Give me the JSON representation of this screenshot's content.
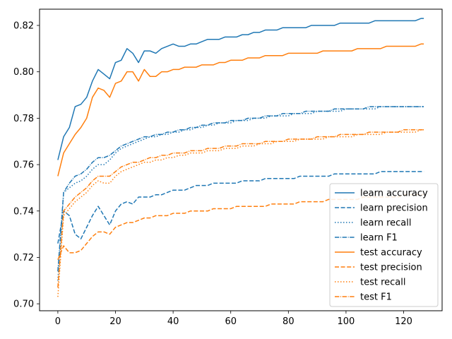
{
  "chart_data": {
    "type": "line",
    "title": "",
    "xlabel": "",
    "ylabel": "",
    "xlim": [
      -6.35,
      133.35
    ],
    "ylim": [
      0.697,
      0.827
    ],
    "xticks": [
      0,
      20,
      40,
      60,
      80,
      100,
      120
    ],
    "yticks": [
      0.7,
      0.72,
      0.74,
      0.76,
      0.78,
      0.8,
      0.82
    ],
    "ytick_labels": [
      "0.70",
      "0.72",
      "0.74",
      "0.76",
      "0.78",
      "0.80",
      "0.82"
    ],
    "grid": false,
    "legend_position": "lower right",
    "colors": {
      "learn": "#1f77b4",
      "test": "#ff7f0e"
    },
    "x": [
      0,
      2,
      4,
      6,
      8,
      10,
      12,
      14,
      16,
      18,
      20,
      22,
      24,
      26,
      28,
      30,
      32,
      34,
      36,
      38,
      40,
      42,
      44,
      46,
      48,
      50,
      52,
      54,
      56,
      58,
      60,
      62,
      64,
      66,
      68,
      70,
      72,
      74,
      76,
      78,
      80,
      82,
      84,
      86,
      88,
      90,
      92,
      94,
      96,
      98,
      100,
      102,
      104,
      106,
      108,
      110,
      112,
      114,
      116,
      118,
      120,
      122,
      124,
      126,
      127
    ],
    "series": [
      {
        "name": "learn accuracy",
        "color": "#1f77b4",
        "linestyle": "solid",
        "values": [
          0.762,
          0.772,
          0.776,
          0.785,
          0.786,
          0.789,
          0.796,
          0.801,
          0.799,
          0.797,
          0.804,
          0.805,
          0.81,
          0.808,
          0.804,
          0.809,
          0.809,
          0.808,
          0.81,
          0.811,
          0.812,
          0.811,
          0.811,
          0.812,
          0.812,
          0.813,
          0.814,
          0.814,
          0.814,
          0.815,
          0.815,
          0.815,
          0.816,
          0.816,
          0.817,
          0.817,
          0.818,
          0.818,
          0.818,
          0.819,
          0.819,
          0.819,
          0.819,
          0.819,
          0.82,
          0.82,
          0.82,
          0.82,
          0.82,
          0.821,
          0.821,
          0.821,
          0.821,
          0.821,
          0.821,
          0.822,
          0.822,
          0.822,
          0.822,
          0.822,
          0.822,
          0.822,
          0.822,
          0.823,
          0.823
        ]
      },
      {
        "name": "learn precision",
        "color": "#1f77b4",
        "linestyle": "dashed",
        "values": [
          0.726,
          0.74,
          0.738,
          0.73,
          0.728,
          0.733,
          0.738,
          0.742,
          0.738,
          0.734,
          0.74,
          0.743,
          0.744,
          0.743,
          0.746,
          0.746,
          0.746,
          0.747,
          0.747,
          0.748,
          0.749,
          0.749,
          0.749,
          0.75,
          0.751,
          0.751,
          0.751,
          0.752,
          0.752,
          0.752,
          0.752,
          0.752,
          0.753,
          0.753,
          0.753,
          0.753,
          0.754,
          0.754,
          0.754,
          0.754,
          0.754,
          0.754,
          0.755,
          0.755,
          0.755,
          0.755,
          0.755,
          0.755,
          0.756,
          0.756,
          0.756,
          0.756,
          0.756,
          0.756,
          0.756,
          0.756,
          0.757,
          0.757,
          0.757,
          0.757,
          0.757,
          0.757,
          0.757,
          0.757,
          0.757
        ]
      },
      {
        "name": "learn recall",
        "color": "#1f77b4",
        "linestyle": "dotted",
        "values": [
          0.71,
          0.748,
          0.75,
          0.752,
          0.753,
          0.755,
          0.758,
          0.76,
          0.76,
          0.762,
          0.765,
          0.767,
          0.768,
          0.769,
          0.77,
          0.771,
          0.772,
          0.772,
          0.773,
          0.773,
          0.774,
          0.774,
          0.775,
          0.775,
          0.776,
          0.776,
          0.777,
          0.777,
          0.778,
          0.778,
          0.778,
          0.779,
          0.779,
          0.779,
          0.78,
          0.78,
          0.78,
          0.781,
          0.781,
          0.781,
          0.781,
          0.782,
          0.782,
          0.782,
          0.782,
          0.783,
          0.783,
          0.783,
          0.783,
          0.783,
          0.784,
          0.784,
          0.784,
          0.784,
          0.784,
          0.784,
          0.785,
          0.785,
          0.785,
          0.785,
          0.785,
          0.785,
          0.785,
          0.785,
          0.785
        ]
      },
      {
        "name": "learn F1",
        "color": "#1f77b4",
        "linestyle": "dashdot",
        "values": [
          0.714,
          0.748,
          0.752,
          0.755,
          0.756,
          0.758,
          0.761,
          0.763,
          0.763,
          0.764,
          0.766,
          0.768,
          0.769,
          0.77,
          0.771,
          0.772,
          0.772,
          0.773,
          0.773,
          0.774,
          0.774,
          0.775,
          0.775,
          0.776,
          0.776,
          0.777,
          0.777,
          0.778,
          0.778,
          0.778,
          0.779,
          0.779,
          0.779,
          0.78,
          0.78,
          0.78,
          0.781,
          0.781,
          0.781,
          0.782,
          0.782,
          0.782,
          0.782,
          0.783,
          0.783,
          0.783,
          0.783,
          0.783,
          0.784,
          0.784,
          0.784,
          0.784,
          0.784,
          0.784,
          0.785,
          0.785,
          0.785,
          0.785,
          0.785,
          0.785,
          0.785,
          0.785,
          0.785,
          0.785,
          0.785
        ]
      },
      {
        "name": "test accuracy",
        "color": "#ff7f0e",
        "linestyle": "solid",
        "values": [
          0.755,
          0.765,
          0.769,
          0.773,
          0.776,
          0.78,
          0.789,
          0.793,
          0.792,
          0.789,
          0.795,
          0.796,
          0.8,
          0.8,
          0.796,
          0.801,
          0.798,
          0.798,
          0.8,
          0.8,
          0.801,
          0.801,
          0.802,
          0.802,
          0.802,
          0.803,
          0.803,
          0.803,
          0.804,
          0.804,
          0.805,
          0.805,
          0.805,
          0.806,
          0.806,
          0.806,
          0.807,
          0.807,
          0.807,
          0.807,
          0.808,
          0.808,
          0.808,
          0.808,
          0.808,
          0.808,
          0.809,
          0.809,
          0.809,
          0.809,
          0.809,
          0.809,
          0.81,
          0.81,
          0.81,
          0.81,
          0.81,
          0.811,
          0.811,
          0.811,
          0.811,
          0.811,
          0.811,
          0.812,
          0.812
        ]
      },
      {
        "name": "test precision",
        "color": "#ff7f0e",
        "linestyle": "dashed",
        "values": [
          0.719,
          0.725,
          0.722,
          0.722,
          0.723,
          0.726,
          0.729,
          0.731,
          0.731,
          0.73,
          0.733,
          0.734,
          0.735,
          0.735,
          0.736,
          0.737,
          0.737,
          0.738,
          0.738,
          0.738,
          0.739,
          0.739,
          0.739,
          0.74,
          0.74,
          0.74,
          0.74,
          0.741,
          0.741,
          0.741,
          0.741,
          0.742,
          0.742,
          0.742,
          0.742,
          0.742,
          0.742,
          0.743,
          0.743,
          0.743,
          0.743,
          0.743,
          0.744,
          0.744,
          0.744,
          0.744,
          0.744,
          0.745,
          0.745,
          0.745,
          0.745,
          0.745,
          0.745,
          0.746,
          0.746,
          0.746,
          0.746,
          0.746,
          0.746,
          0.746,
          0.747,
          0.747,
          0.747,
          0.747,
          0.747
        ]
      },
      {
        "name": "test recall",
        "color": "#ff7f0e",
        "linestyle": "dotted",
        "values": [
          0.703,
          0.738,
          0.741,
          0.744,
          0.746,
          0.748,
          0.751,
          0.753,
          0.752,
          0.752,
          0.755,
          0.757,
          0.758,
          0.759,
          0.76,
          0.761,
          0.761,
          0.762,
          0.762,
          0.763,
          0.763,
          0.764,
          0.764,
          0.765,
          0.765,
          0.765,
          0.766,
          0.766,
          0.766,
          0.767,
          0.767,
          0.767,
          0.768,
          0.768,
          0.768,
          0.769,
          0.769,
          0.769,
          0.77,
          0.77,
          0.77,
          0.77,
          0.771,
          0.771,
          0.771,
          0.771,
          0.771,
          0.772,
          0.772,
          0.772,
          0.772,
          0.772,
          0.773,
          0.773,
          0.773,
          0.773,
          0.773,
          0.774,
          0.774,
          0.774,
          0.774,
          0.774,
          0.774,
          0.775,
          0.775
        ]
      },
      {
        "name": "test F1",
        "color": "#ff7f0e",
        "linestyle": "dashdot",
        "values": [
          0.707,
          0.74,
          0.743,
          0.746,
          0.748,
          0.75,
          0.753,
          0.755,
          0.755,
          0.755,
          0.757,
          0.759,
          0.76,
          0.761,
          0.761,
          0.762,
          0.763,
          0.763,
          0.764,
          0.764,
          0.765,
          0.765,
          0.765,
          0.766,
          0.766,
          0.766,
          0.767,
          0.767,
          0.767,
          0.768,
          0.768,
          0.768,
          0.769,
          0.769,
          0.769,
          0.769,
          0.77,
          0.77,
          0.77,
          0.77,
          0.771,
          0.771,
          0.771,
          0.771,
          0.771,
          0.772,
          0.772,
          0.772,
          0.772,
          0.773,
          0.773,
          0.773,
          0.773,
          0.773,
          0.774,
          0.774,
          0.774,
          0.774,
          0.774,
          0.774,
          0.775,
          0.775,
          0.775,
          0.775,
          0.775
        ]
      }
    ]
  }
}
